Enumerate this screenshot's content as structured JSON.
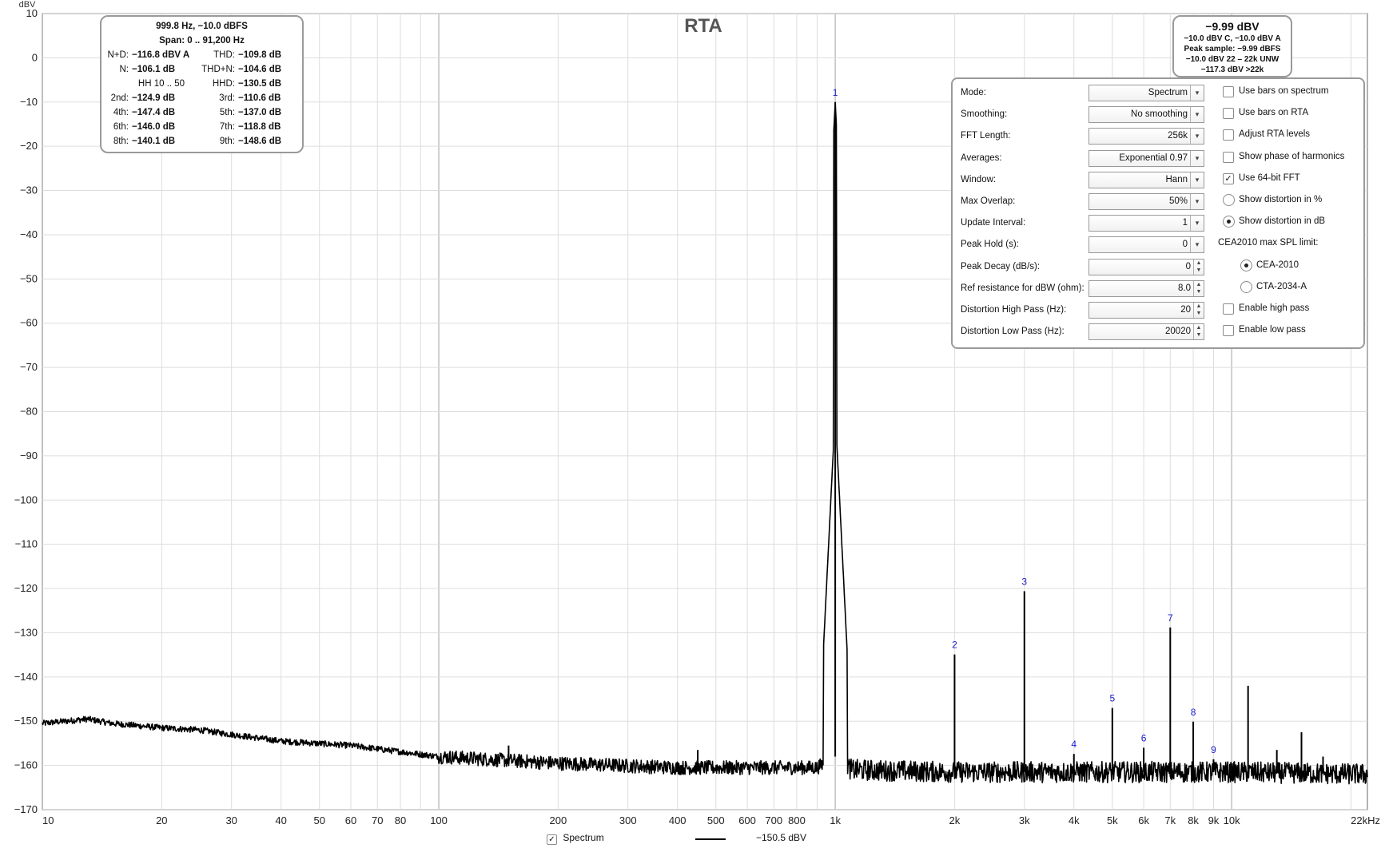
{
  "title": "RTA",
  "y_unit": "dBV",
  "info_left": {
    "line1": "999.8 Hz, −10.0 dBFS",
    "line2": "Span: 0 .. 91,200 Hz",
    "rows": [
      {
        "l_label": "N+D:",
        "l_val": "−116.8 dBV A",
        "r_label": "THD:",
        "r_val": "−109.8 dB"
      },
      {
        "l_label": "N:",
        "l_val": "−106.1 dB",
        "r_label": "THD+N:",
        "r_val": "−104.6 dB"
      },
      {
        "l_label": "HH 10 .. 50",
        "l_val": "",
        "r_label": "HHD:",
        "r_val": "−130.5 dB"
      },
      {
        "l_label": "2nd:",
        "l_val": "−124.9 dB",
        "r_label": "3rd:",
        "r_val": "−110.6 dB"
      },
      {
        "l_label": "4th:",
        "l_val": "−147.4 dB",
        "r_label": "5th:",
        "r_val": "−137.0 dB"
      },
      {
        "l_label": "6th:",
        "l_val": "−146.0 dB",
        "r_label": "7th:",
        "r_val": "−118.8 dB"
      },
      {
        "l_label": "8th:",
        "l_val": "−140.1 dB",
        "r_label": "9th:",
        "r_val": "−148.6 dB"
      }
    ]
  },
  "info_right": {
    "headline": "−9.99 dBV",
    "lines": [
      "−10.0 dBV C, −10.0 dBV A",
      "Peak sample: −9.99 dBFS",
      "−10.0 dBV 22 – 22k UNW",
      "−117.3 dBV >22k"
    ]
  },
  "settings": {
    "rows": [
      {
        "label": "Mode:",
        "value": "Spectrum",
        "kind": "dropdown"
      },
      {
        "label": "Smoothing:",
        "value": "No  smoothing",
        "kind": "dropdown"
      },
      {
        "label": "FFT Length:",
        "value": "256k",
        "kind": "dropdown"
      },
      {
        "label": "Averages:",
        "value": "Exponential 0.97",
        "kind": "dropdown"
      },
      {
        "label": "Window:",
        "value": "Hann",
        "kind": "dropdown"
      },
      {
        "label": "Max Overlap:",
        "value": "50%",
        "kind": "dropdown"
      },
      {
        "label": "Update Interval:",
        "value": "1",
        "kind": "dropdown"
      },
      {
        "label": "Peak Hold (s):",
        "value": "0",
        "kind": "dropdown"
      },
      {
        "label": "Peak Decay (dB/s):",
        "value": "0",
        "kind": "spinner"
      },
      {
        "label": "Ref resistance for dBW (ohm):",
        "value": "8.0",
        "kind": "spinner"
      },
      {
        "label": "Distortion High Pass (Hz):",
        "value": "20",
        "kind": "spinner"
      },
      {
        "label": "Distortion Low Pass (Hz):",
        "value": "20020",
        "kind": "spinner"
      }
    ],
    "options": [
      {
        "label": "Use bars on spectrum",
        "kind": "checkbox",
        "checked": false,
        "indent": 0
      },
      {
        "label": "Use bars on RTA",
        "kind": "checkbox",
        "checked": false,
        "indent": 0
      },
      {
        "label": "Adjust RTA levels",
        "kind": "checkbox",
        "checked": false,
        "indent": 0
      },
      {
        "label": "Show phase of harmonics",
        "kind": "checkbox",
        "checked": false,
        "indent": 0
      },
      {
        "label": "Use 64-bit FFT",
        "kind": "checkbox",
        "checked": true,
        "indent": 0
      },
      {
        "label": "Show distortion in %",
        "kind": "radio",
        "checked": false,
        "indent": 0
      },
      {
        "label": "Show distortion in dB",
        "kind": "radio",
        "checked": true,
        "indent": 0
      },
      {
        "label": "CEA2010 max SPL limit:",
        "kind": "heading",
        "checked": false,
        "indent": 0
      },
      {
        "label": "CEA-2010",
        "kind": "radio",
        "checked": true,
        "indent": 1
      },
      {
        "label": "CTA-2034-A",
        "kind": "radio",
        "checked": false,
        "indent": 1
      },
      {
        "label": "Enable high pass",
        "kind": "checkbox",
        "checked": false,
        "indent": 0
      },
      {
        "label": "Enable low pass",
        "kind": "checkbox",
        "checked": false,
        "indent": 0
      }
    ]
  },
  "legend": {
    "check_mark": "✓",
    "series_label": "Spectrum",
    "value": "−150.5 dBV"
  },
  "colors": {
    "trace": "#000000",
    "grid": "#dddddd",
    "major_grid": "#bcbcbc",
    "harmonic_label": "#1a1acc",
    "frame": "#9a9a9a"
  },
  "chart_data": {
    "type": "line",
    "title": "RTA",
    "ylabel": "dBV",
    "x_scale": "log",
    "xlim": [
      10,
      22000
    ],
    "ylim": [
      -170,
      10
    ],
    "y_ticks": [
      10,
      0,
      -10,
      -20,
      -30,
      -40,
      -50,
      -60,
      -70,
      -80,
      -90,
      -100,
      -110,
      -120,
      -130,
      -140,
      -150,
      -160,
      -170
    ],
    "y_tick_labels": [
      "10",
      "0",
      "−10",
      "−20",
      "−30",
      "−40",
      "−50",
      "−60",
      "−70",
      "−80",
      "−90",
      "−100",
      "−110",
      "−120",
      "−130",
      "−140",
      "−150",
      "−160",
      "−170"
    ],
    "x_ticks": [
      10,
      20,
      30,
      40,
      50,
      60,
      70,
      80,
      100,
      200,
      300,
      400,
      500,
      600,
      700,
      800,
      1000,
      2000,
      3000,
      4000,
      5000,
      6000,
      7000,
      8000,
      9000,
      10000,
      22000
    ],
    "x_tick_labels": [
      "10",
      "20",
      "30",
      "40",
      "50",
      "60",
      "70",
      "80",
      "100",
      "200",
      "300",
      "400",
      "500",
      "600",
      "700",
      "800",
      "1k",
      "2k",
      "3k",
      "4k",
      "5k",
      "6k",
      "7k",
      "8k",
      "9k",
      "10k",
      "22kHz"
    ],
    "grid": true,
    "series": [
      {
        "name": "Spectrum",
        "noise_floor": {
          "x": [
            10,
            12,
            13,
            15,
            20,
            25,
            30,
            40,
            60,
            100,
            200,
            400,
            900,
            1000,
            1100,
            2000,
            5000,
            10000,
            22000
          ],
          "y": [
            -150.5,
            -149.8,
            -149.5,
            -150.5,
            -151.5,
            -152,
            -153,
            -154.5,
            -155.5,
            -158,
            -159.5,
            -160.5,
            -160.5,
            -158,
            -161,
            -161.5,
            -161.5,
            -161.5,
            -162
          ]
        },
        "peaks": [
          {
            "x": 1000,
            "y": -10,
            "label": "1"
          },
          {
            "x": 2000,
            "y": -134.9,
            "label": "2"
          },
          {
            "x": 3000,
            "y": -120.6,
            "label": "3"
          },
          {
            "x": 4000,
            "y": -157.4,
            "label": "4"
          },
          {
            "x": 5000,
            "y": -147.0,
            "label": "5"
          },
          {
            "x": 6000,
            "y": -156.0,
            "label": "6"
          },
          {
            "x": 7000,
            "y": -128.8,
            "label": "7"
          },
          {
            "x": 8000,
            "y": -150.1,
            "label": "8"
          },
          {
            "x": 9000,
            "y": -158.6,
            "label": "9"
          },
          {
            "x": 11000,
            "y": -142,
            "label": ""
          },
          {
            "x": 13000,
            "y": -156.5,
            "label": ""
          },
          {
            "x": 15000,
            "y": -152.5,
            "label": ""
          },
          {
            "x": 17000,
            "y": -158,
            "label": ""
          },
          {
            "x": 450,
            "y": -156.5,
            "label": ""
          },
          {
            "x": 150,
            "y": -155.5,
            "label": ""
          }
        ]
      }
    ]
  }
}
